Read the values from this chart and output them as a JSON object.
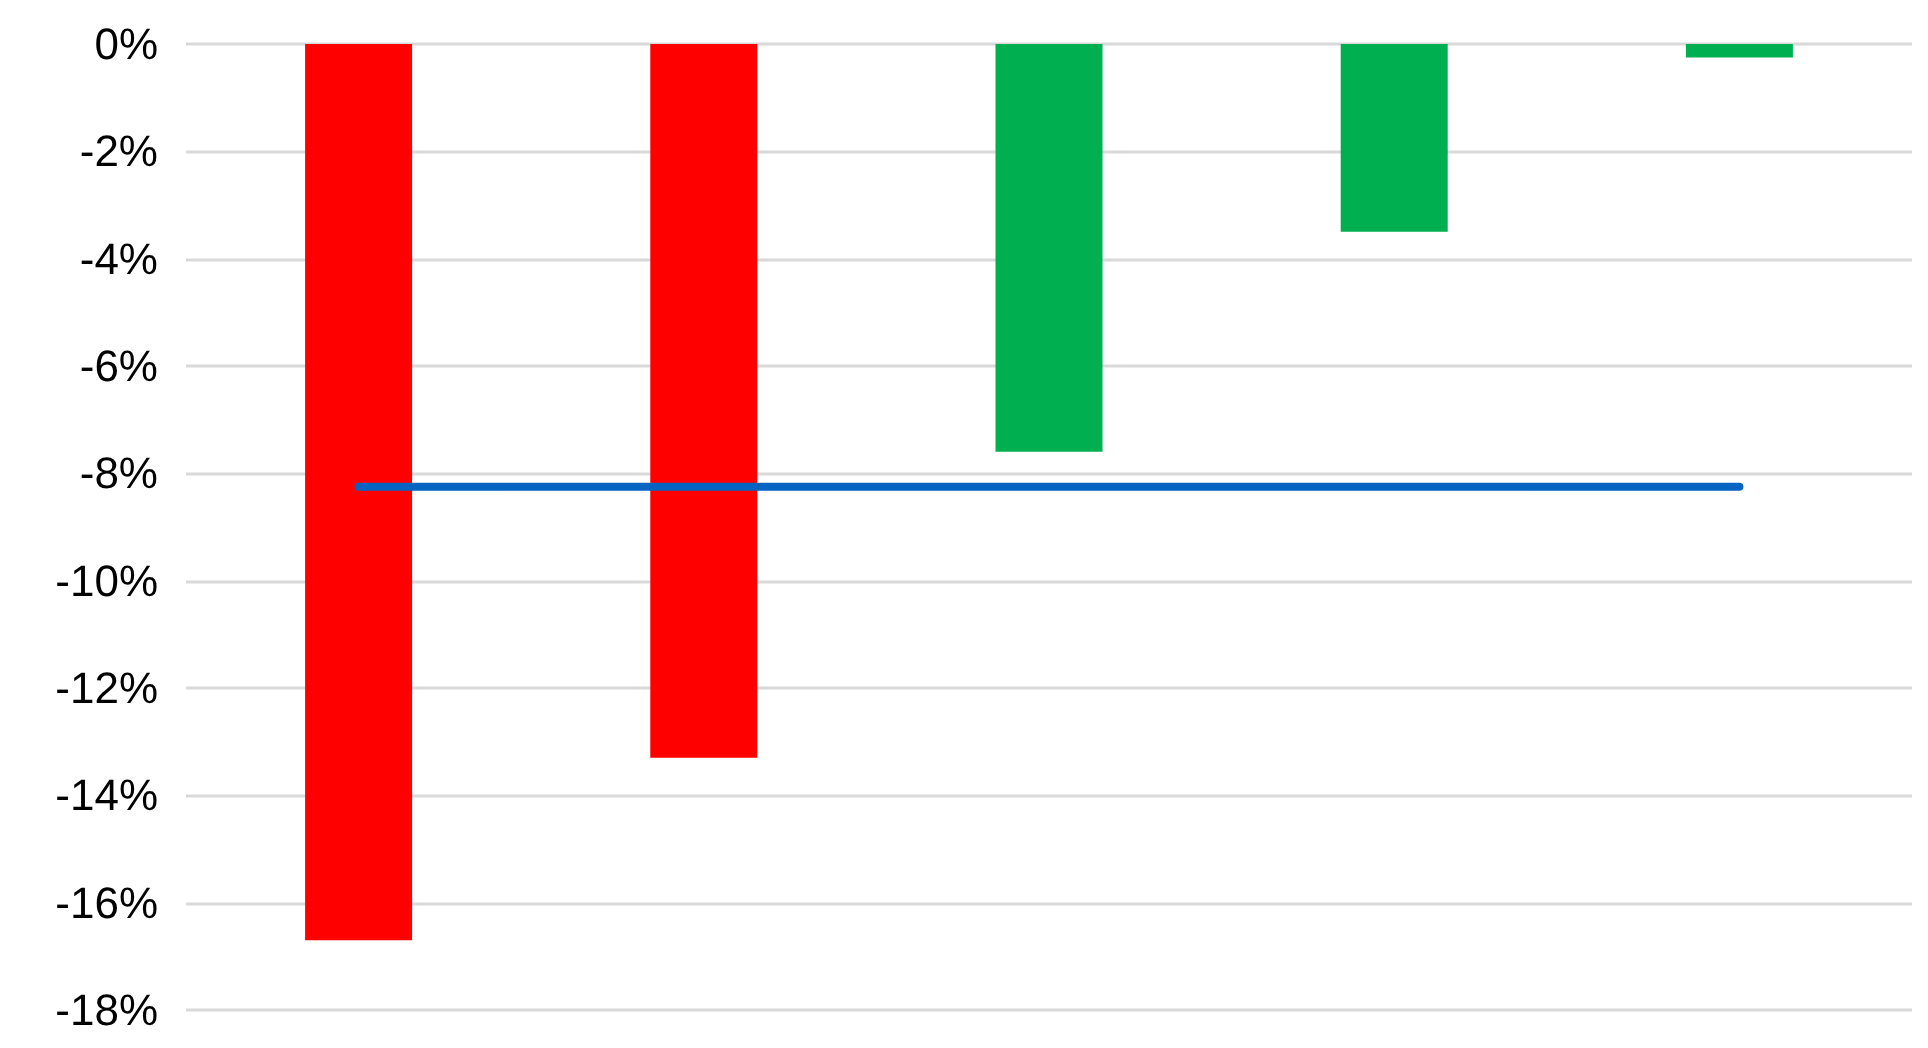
{
  "chart_data": {
    "type": "bar",
    "categories": [
      null,
      null,
      null,
      null,
      null
    ],
    "series": [
      {
        "colors": [
          "#ff0000",
          "#ff0000",
          "#00b050",
          "#00b050",
          "#00b050"
        ],
        "values": [
          -16.7,
          -13.3,
          -7.6,
          -3.5,
          -0.25
        ]
      },
      {
        "type": "line",
        "color": "#0563c1",
        "values": [
          -8.25,
          -8.25,
          -8.25,
          -8.25,
          -8.25
        ]
      }
    ],
    "ylim": [
      -18,
      0
    ],
    "yticks": [
      {
        "value": -18,
        "label": "-18%"
      },
      {
        "value": -16,
        "label": "-16%"
      },
      {
        "value": -14,
        "label": "-14%"
      },
      {
        "value": -12,
        "label": "-12%"
      },
      {
        "value": -10,
        "label": "-10%"
      },
      {
        "value": -8,
        "label": "-8%"
      },
      {
        "value": -6,
        "label": "-6%"
      },
      {
        "value": -4,
        "label": "-4%"
      },
      {
        "value": -2,
        "label": "-2%"
      },
      {
        "value": 0,
        "label": "0%"
      }
    ],
    "grid": "y",
    "marker": "none"
  }
}
